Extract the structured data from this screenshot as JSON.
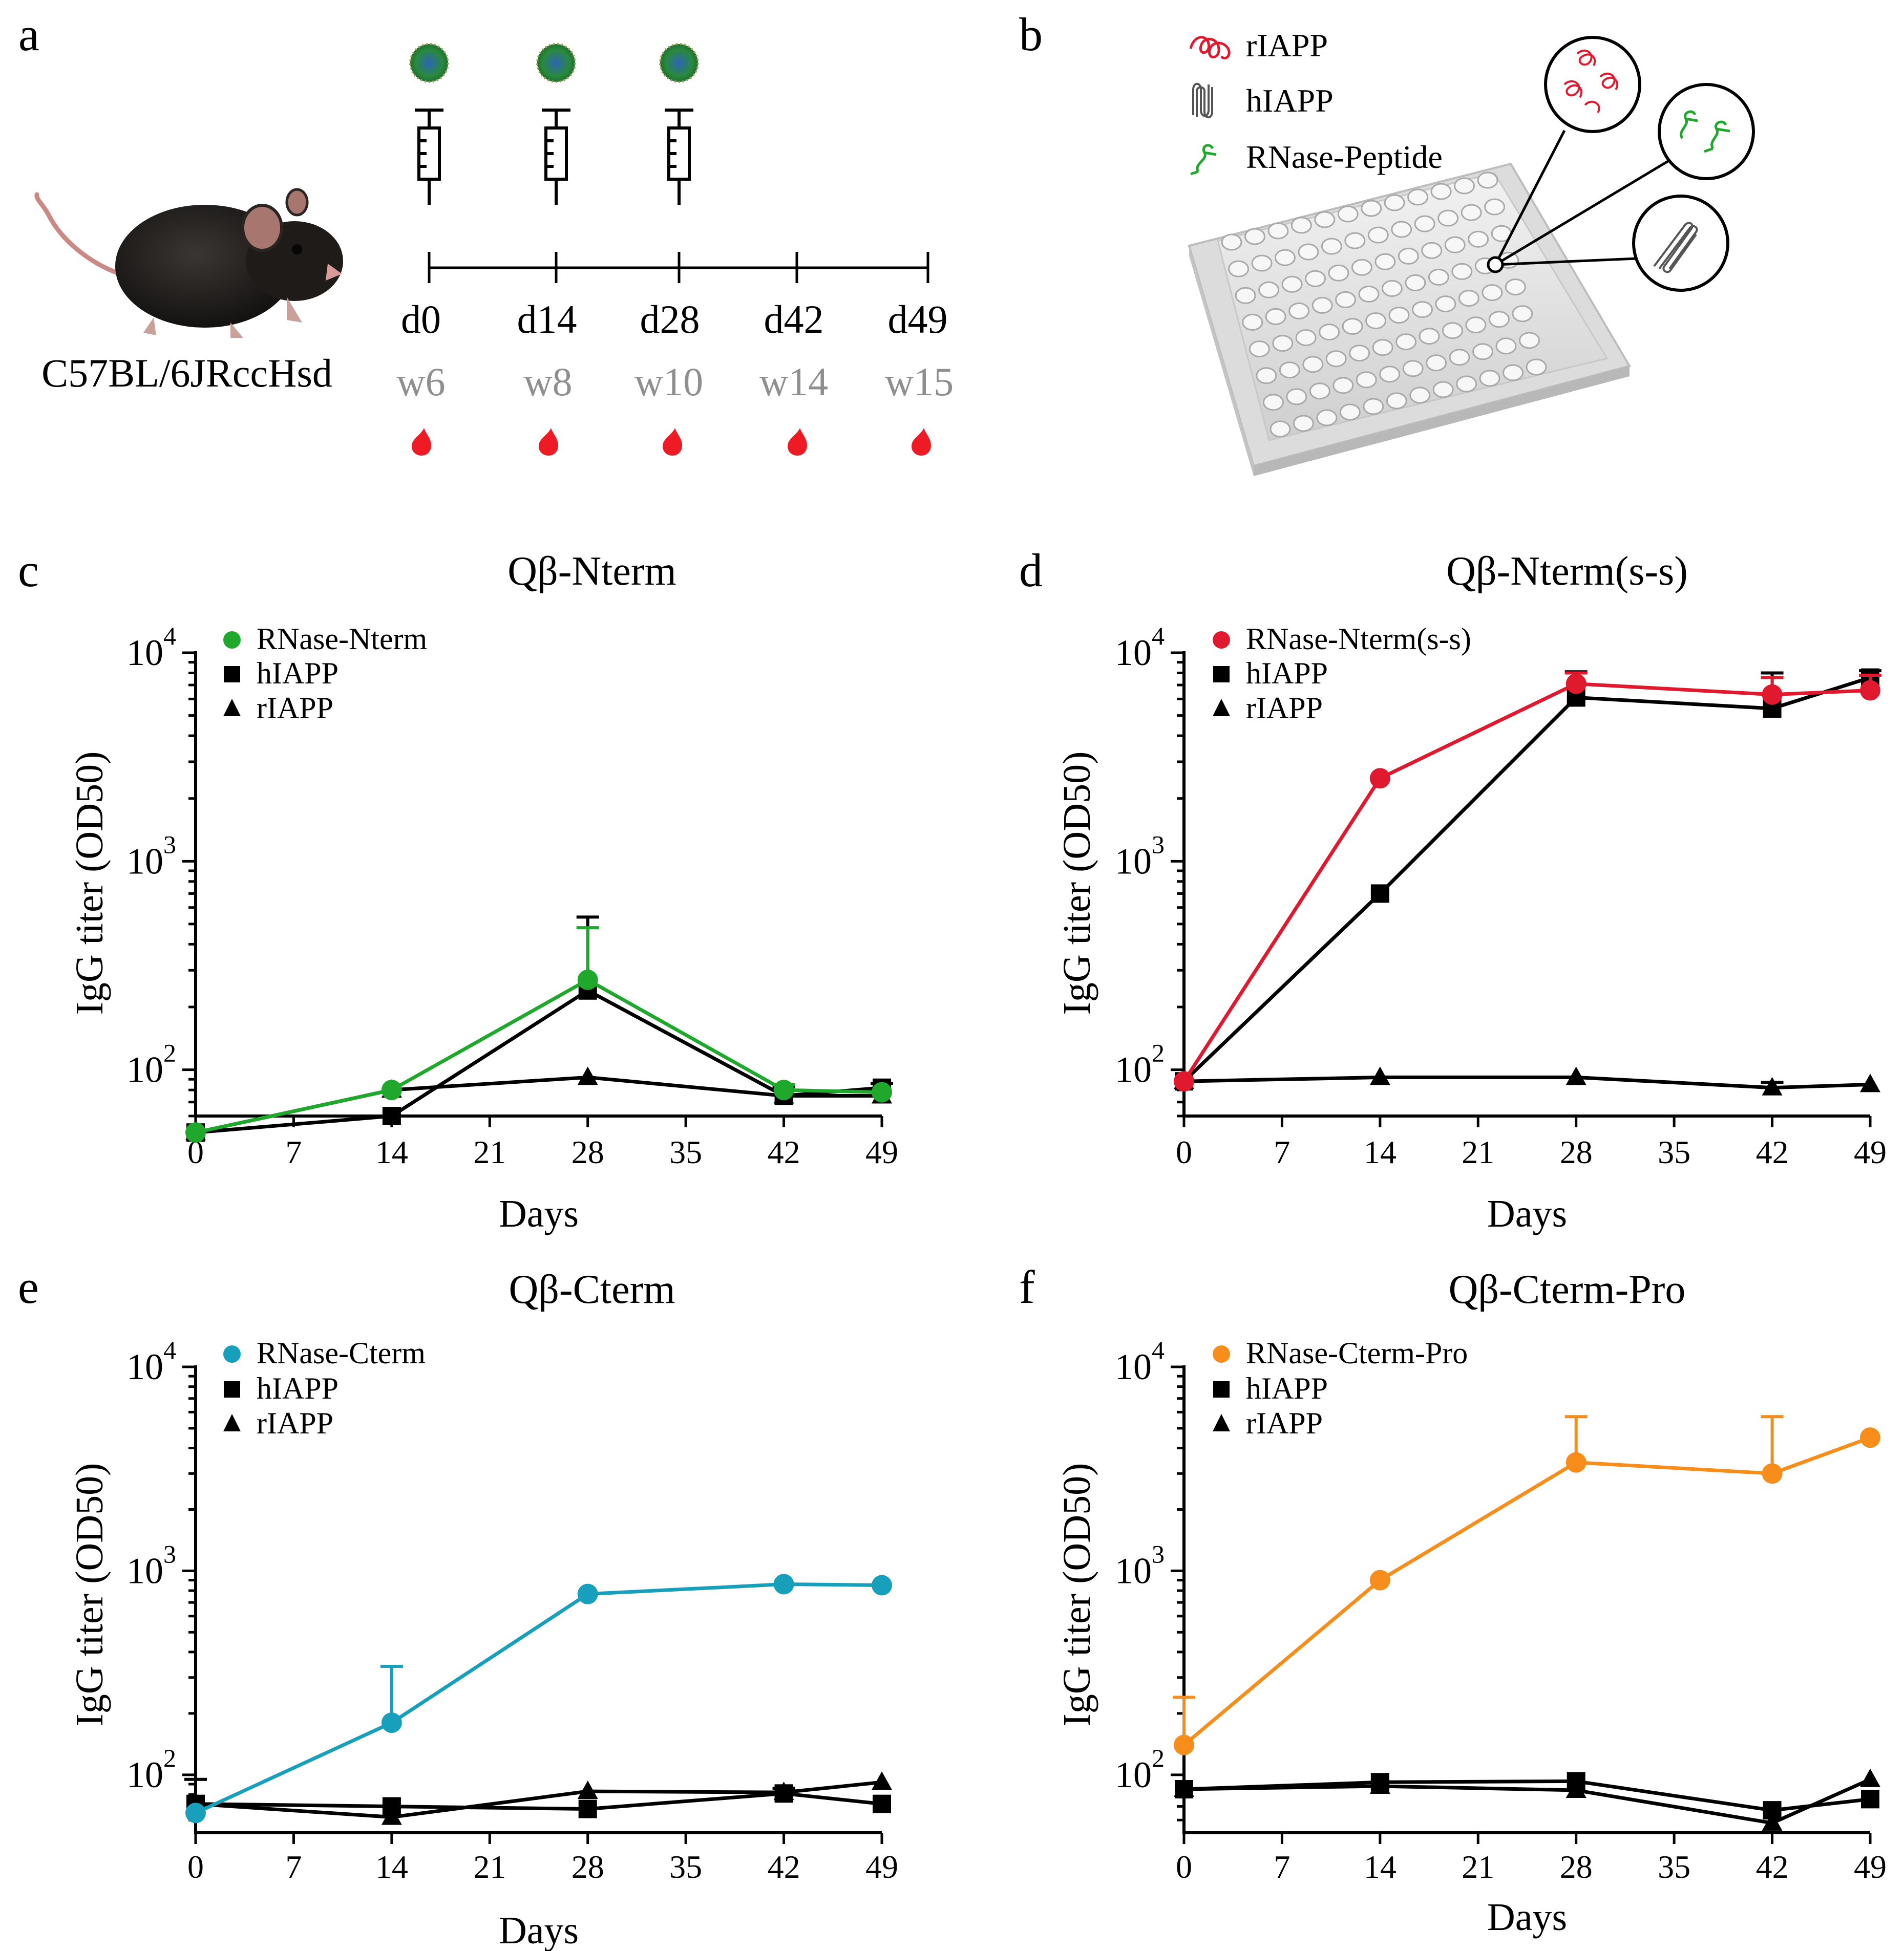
{
  "colors": {
    "black": "#000000",
    "green": "#1fa82c",
    "red": "#e0192e",
    "cyan": "#179fbb",
    "orange": "#f78d1b",
    "gray": "#8f8f8f",
    "blood": "#ee1b24"
  },
  "panel_a": {
    "letter": "a",
    "strain": "C57BL/6JRccHsd",
    "days": [
      "d0",
      "d14",
      "d28",
      "d42",
      "d49"
    ],
    "weeks": [
      "w6",
      "w8",
      "w10",
      "w14",
      "w15"
    ],
    "injection_days": [
      "d0",
      "d14",
      "d28"
    ],
    "icons": [
      "mouse-icon",
      "vlp-particle-icon",
      "syringe-icon",
      "blood-drop-icon"
    ]
  },
  "panel_b": {
    "letter": "b",
    "legend": [
      {
        "label": "rIAPP",
        "color": "#e0192e",
        "icon": "random-coil-icon"
      },
      {
        "label": "hIAPP",
        "color": "#555555",
        "icon": "fibril-icon"
      },
      {
        "label": "RNase-Peptide",
        "color": "#1fa82c",
        "icon": "rnase-peptide-icon"
      }
    ],
    "icons": [
      "96-well-plate-icon"
    ]
  },
  "chart_data": [
    {
      "panel": "c",
      "type": "line",
      "title": "Qβ-Nterm",
      "xlabel": "Days",
      "ylabel": "IgG titer (OD50)",
      "yscale": "log",
      "ylim": [
        60,
        10000
      ],
      "xlim": [
        0,
        49
      ],
      "xticks": [
        "0",
        "7",
        "14",
        "21",
        "28",
        "35",
        "42",
        "49"
      ],
      "yticks": [
        {
          "base": "10",
          "exp": "2"
        },
        {
          "base": "10",
          "exp": "3"
        },
        {
          "base": "10",
          "exp": "4"
        }
      ],
      "x": [
        0,
        14,
        28,
        42,
        49
      ],
      "series": [
        {
          "name": "RNase-Nterm",
          "marker": "circle",
          "color": "#1fa82c",
          "values": [
            50,
            80,
            270,
            80,
            78
          ],
          "err": [
            null,
            null,
            480,
            85,
            null
          ]
        },
        {
          "name": "hIAPP",
          "marker": "square",
          "color": "#000000",
          "values": [
            50,
            60,
            240,
            75,
            82
          ],
          "err": [
            null,
            null,
            540,
            83,
            86
          ]
        },
        {
          "name": "rIAPP",
          "marker": "triangle",
          "color": "#000000",
          "values": [
            50,
            80,
            92,
            75,
            75
          ],
          "err": [
            null,
            null,
            null,
            null,
            null
          ]
        }
      ]
    },
    {
      "panel": "d",
      "type": "line",
      "title": "Qβ-Nterm(s-s)",
      "xlabel": "Days",
      "ylabel": "IgG titer (OD50)",
      "yscale": "log",
      "ylim": [
        60,
        10000
      ],
      "xlim": [
        0,
        49
      ],
      "xticks": [
        "0",
        "7",
        "14",
        "21",
        "28",
        "35",
        "42",
        "49"
      ],
      "yticks": [
        {
          "base": "10",
          "exp": "2"
        },
        {
          "base": "10",
          "exp": "3"
        },
        {
          "base": "10",
          "exp": "4"
        }
      ],
      "x": [
        0,
        14,
        28,
        42,
        49
      ],
      "series": [
        {
          "name": "RNase-Nterm(s-s)",
          "marker": "circle",
          "color": "#e0192e",
          "values": [
            88,
            2500,
            7100,
            6300,
            6600
          ],
          "err": [
            null,
            null,
            8000,
            7600,
            7800
          ]
        },
        {
          "name": "hIAPP",
          "marker": "square",
          "color": "#000000",
          "values": [
            88,
            700,
            6100,
            5400,
            7600
          ],
          "err": [
            null,
            null,
            8100,
            8000,
            8200
          ]
        },
        {
          "name": "rIAPP",
          "marker": "triangle",
          "color": "#000000",
          "values": [
            88,
            92,
            92,
            82,
            85
          ],
          "err": [
            null,
            null,
            null,
            87,
            null
          ]
        }
      ]
    },
    {
      "panel": "e",
      "type": "line",
      "title": "Qβ-Cterm",
      "xlabel": "Days",
      "ylabel": "IgG titer (OD50)",
      "yscale": "log",
      "ylim": [
        52,
        10000
      ],
      "xlim": [
        0,
        49
      ],
      "xticks": [
        "0",
        "7",
        "14",
        "21",
        "28",
        "35",
        "42",
        "49"
      ],
      "yticks": [
        {
          "base": "10",
          "exp": "2"
        },
        {
          "base": "10",
          "exp": "3"
        },
        {
          "base": "10",
          "exp": "4"
        }
      ],
      "x": [
        0,
        14,
        28,
        42,
        49
      ],
      "series": [
        {
          "name": "RNase-Cterm",
          "marker": "circle",
          "color": "#179fbb",
          "values": [
            65,
            180,
            770,
            860,
            850
          ],
          "err": [
            null,
            340,
            null,
            null,
            null
          ]
        },
        {
          "name": "hIAPP",
          "marker": "square",
          "color": "#000000",
          "values": [
            72,
            70,
            68,
            81,
            72
          ],
          "err": [
            95,
            null,
            null,
            86,
            null
          ]
        },
        {
          "name": "rIAPP",
          "marker": "triangle",
          "color": "#000000",
          "values": [
            72,
            62,
            83,
            82,
            92
          ],
          "err": [
            null,
            null,
            null,
            null,
            null
          ]
        }
      ]
    },
    {
      "panel": "f",
      "type": "line",
      "title": "Qβ-Cterm-Pro",
      "xlabel": "Days",
      "ylabel": "IgG titer (OD50)",
      "yscale": "log",
      "ylim": [
        52,
        10000
      ],
      "xlim": [
        0,
        49
      ],
      "xticks": [
        "0",
        "7",
        "14",
        "21",
        "28",
        "35",
        "42",
        "49"
      ],
      "yticks": [
        {
          "base": "10",
          "exp": "2"
        },
        {
          "base": "10",
          "exp": "3"
        },
        {
          "base": "10",
          "exp": "4"
        }
      ],
      "x": [
        0,
        14,
        28,
        42,
        49
      ],
      "series": [
        {
          "name": "RNase-Cterm-Pro",
          "marker": "circle",
          "color": "#f78d1b",
          "values": [
            140,
            900,
            3400,
            3000,
            4500
          ],
          "err": [
            240,
            null,
            5700,
            5700,
            null
          ]
        },
        {
          "name": "hIAPP",
          "marker": "square",
          "color": "#000000",
          "values": [
            85,
            92,
            93,
            67,
            76
          ],
          "err": [
            null,
            null,
            null,
            null,
            null
          ]
        },
        {
          "name": "rIAPP",
          "marker": "triangle",
          "color": "#000000",
          "values": [
            85,
            88,
            84,
            58,
            95
          ],
          "err": [
            null,
            null,
            null,
            null,
            null
          ]
        }
      ]
    }
  ]
}
